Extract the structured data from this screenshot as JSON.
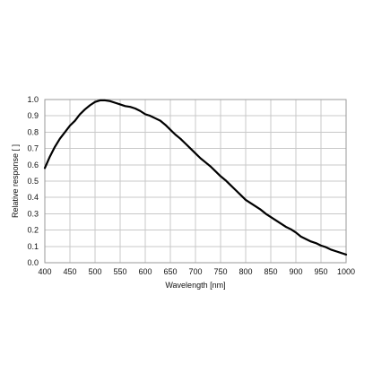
{
  "chart_data": {
    "type": "line",
    "title": "",
    "xlabel": "Wavelength [nm]",
    "ylabel": "Relative response [ ]",
    "xlim": [
      400,
      1000
    ],
    "ylim": [
      0,
      1.0
    ],
    "xticks": [
      400,
      450,
      500,
      550,
      600,
      650,
      700,
      750,
      800,
      850,
      900,
      950,
      1000
    ],
    "yticks": [
      "0.0",
      "0.1",
      "0.2",
      "0.3",
      "0.4",
      "0.5",
      "0.6",
      "0.7",
      "0.8",
      "0.9",
      "1.0"
    ],
    "grid": true,
    "legend": "none",
    "series": [
      {
        "color": "#000000",
        "x": [
          400,
          410,
          420,
          430,
          440,
          450,
          460,
          470,
          480,
          490,
          500,
          510,
          520,
          530,
          540,
          550,
          560,
          570,
          580,
          590,
          600,
          610,
          620,
          630,
          640,
          650,
          660,
          670,
          680,
          690,
          700,
          710,
          720,
          730,
          740,
          750,
          760,
          770,
          780,
          790,
          800,
          810,
          820,
          830,
          840,
          850,
          860,
          870,
          880,
          890,
          900,
          910,
          920,
          930,
          940,
          950,
          960,
          970,
          980,
          990,
          1000
        ],
        "y": [
          0.58,
          0.65,
          0.71,
          0.76,
          0.8,
          0.84,
          0.87,
          0.91,
          0.94,
          0.965,
          0.985,
          0.995,
          0.995,
          0.99,
          0.98,
          0.97,
          0.96,
          0.955,
          0.945,
          0.93,
          0.91,
          0.9,
          0.885,
          0.87,
          0.845,
          0.815,
          0.785,
          0.76,
          0.73,
          0.7,
          0.67,
          0.64,
          0.615,
          0.59,
          0.56,
          0.53,
          0.505,
          0.475,
          0.445,
          0.415,
          0.385,
          0.365,
          0.345,
          0.325,
          0.3,
          0.28,
          0.26,
          0.24,
          0.22,
          0.205,
          0.185,
          0.16,
          0.145,
          0.13,
          0.12,
          0.105,
          0.095,
          0.08,
          0.07,
          0.06,
          0.05
        ]
      }
    ]
  }
}
